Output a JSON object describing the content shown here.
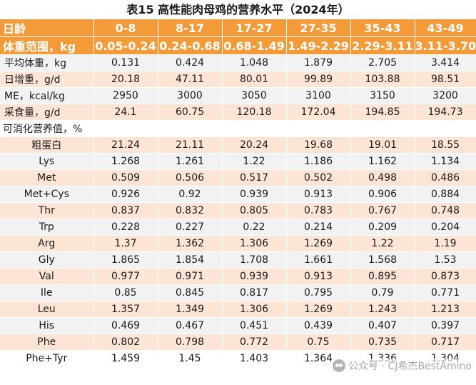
{
  "title": "表15  高性能肉母鸡的营养水平（2024年）",
  "columns": [
    "日龄",
    "0-8",
    "8-17",
    "17-27",
    "27-35",
    "35-43",
    "43-49"
  ],
  "weight_range_row": [
    "体重范围，kg",
    "0.05-0.24",
    "0.24-0.68",
    "0.68-1.49",
    "1.49-2.29",
    "2.29-3.11",
    "3.11-3.70"
  ],
  "rows": [
    [
      "平均体重，kg",
      "0.131",
      "0.424",
      "1.048",
      "1.879",
      "2.705",
      "3.414"
    ],
    [
      "日增重，g/d",
      "20.18",
      "47.11",
      "80.01",
      "99.89",
      "103.88",
      "98.51"
    ],
    [
      "ME，kcal/kg",
      "2950",
      "3000",
      "3050",
      "3100",
      "3150",
      "3200"
    ],
    [
      "采食量，g/d",
      "24.1",
      "60.75",
      "120.18",
      "172.04",
      "194.85",
      "194.73"
    ]
  ],
  "section_label": "可消化营养值，%",
  "nutrient_rows": [
    [
      "粗蛋白",
      "21.24",
      "21.11",
      "20.24",
      "19.68",
      "19.01",
      "18.55"
    ],
    [
      "Lys",
      "1.268",
      "1.261",
      "1.22",
      "1.186",
      "1.162",
      "1.134"
    ],
    [
      "Met",
      "0.509",
      "0.506",
      "0.517",
      "0.502",
      "0.498",
      "0.486"
    ],
    [
      "Met+Cys",
      "0.926",
      "0.92",
      "0.939",
      "0.913",
      "0.906",
      "0.884"
    ],
    [
      "Thr",
      "0.837",
      "0.832",
      "0.805",
      "0.783",
      "0.767",
      "0.748"
    ],
    [
      "Trp",
      "0.228",
      "0.227",
      "0.22",
      "0.214",
      "0.209",
      "0.204"
    ],
    [
      "Arg",
      "1.37",
      "1.362",
      "1.306",
      "1.269",
      "1.22",
      "1.19"
    ],
    [
      "Gly",
      "1.865",
      "1.854",
      "1.708",
      "1.661",
      "1.568",
      "1.53"
    ],
    [
      "Val",
      "0.977",
      "0.971",
      "0.939",
      "0.913",
      "0.895",
      "0.873"
    ],
    [
      "Ile",
      "0.85",
      "0.845",
      "0.817",
      "0.795",
      "0.79",
      "0.771"
    ],
    [
      "Leu",
      "1.357",
      "1.349",
      "1.306",
      "1.269",
      "1.243",
      "1.213"
    ],
    [
      "His",
      "0.469",
      "0.467",
      "0.451",
      "0.439",
      "0.407",
      "0.397"
    ],
    [
      "Phe",
      "0.802",
      "0.798",
      "0.772",
      "0.75",
      "0.735",
      "0.717"
    ],
    [
      "Phe+Tyr",
      "1.459",
      "1.45",
      "1.403",
      "1.364",
      "1.336",
      "1.304"
    ]
  ],
  "watermark": "公众号 · CJ希杰BestAmino",
  "colors": {
    "header": "#f39b39",
    "stripe_a": "#fde5d6",
    "stripe_b": "#f2f2f2"
  }
}
